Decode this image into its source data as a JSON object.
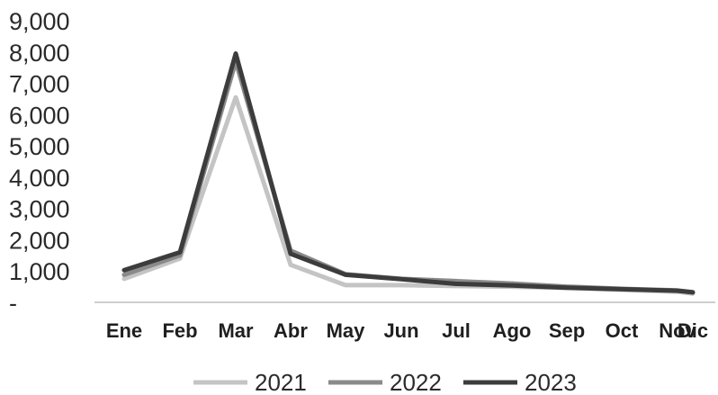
{
  "chart_data": {
    "type": "line",
    "categories": [
      "Ene",
      "Feb",
      "Mar",
      "Abr",
      "May",
      "Jun",
      "Jul",
      "Ago",
      "Sep",
      "Oct",
      "Nov",
      "Dic"
    ],
    "y_tick_labels": [
      "-",
      "1,000",
      "2,000",
      "3,000",
      "4,000",
      "5,000",
      "6,000",
      "7,000",
      "8,000",
      "9,000"
    ],
    "ylim": [
      0,
      9000
    ],
    "grid": false,
    "legend_position": "bottom",
    "series": [
      {
        "name": "2021",
        "color": "#c4c4c4",
        "values": [
          750,
          1400,
          6550,
          1200,
          550,
          550,
          520,
          500,
          460,
          400,
          340,
          280
        ]
      },
      {
        "name": "2022",
        "color": "#8a8a8a",
        "values": [
          880,
          1500,
          7700,
          1650,
          900,
          750,
          680,
          600,
          500,
          430,
          380,
          320
        ]
      },
      {
        "name": "2023",
        "color": "#3c3c3c",
        "values": [
          1030,
          1600,
          7950,
          1550,
          880,
          740,
          590,
          540,
          470,
          420,
          370,
          320
        ]
      }
    ]
  }
}
